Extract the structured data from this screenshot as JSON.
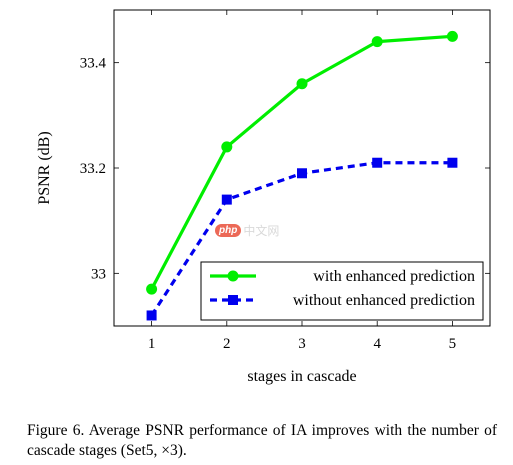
{
  "chart_data": {
    "type": "line",
    "xlabel": "stages in cascade",
    "ylabel": "PSNR (dB)",
    "x": [
      1,
      2,
      3,
      4,
      5
    ],
    "xticks": [
      "1",
      "2",
      "3",
      "4",
      "5"
    ],
    "yticks": [
      33,
      33.2,
      33.4
    ],
    "ytick_labels": [
      "33",
      "33.2",
      "33.4"
    ],
    "xlim": [
      0.5,
      5.5
    ],
    "ylim": [
      32.9,
      33.5
    ],
    "grid": false,
    "legend_position": "lower-right",
    "series": [
      {
        "name": "with enhanced prediction",
        "values": [
          32.97,
          33.24,
          33.36,
          33.44,
          33.45
        ],
        "color": "#00ee00",
        "style": "solid",
        "marker": "circle"
      },
      {
        "name": "without enhanced prediction",
        "values": [
          32.92,
          33.14,
          33.19,
          33.21,
          33.21
        ],
        "color": "#0000ee",
        "style": "dashed",
        "marker": "square"
      }
    ]
  },
  "caption": "Figure 6. Average PSNR performance of IA improves with the number of cascade stages (Set5, ×3).",
  "watermark": {
    "badge": "php",
    "text": "中文网"
  }
}
